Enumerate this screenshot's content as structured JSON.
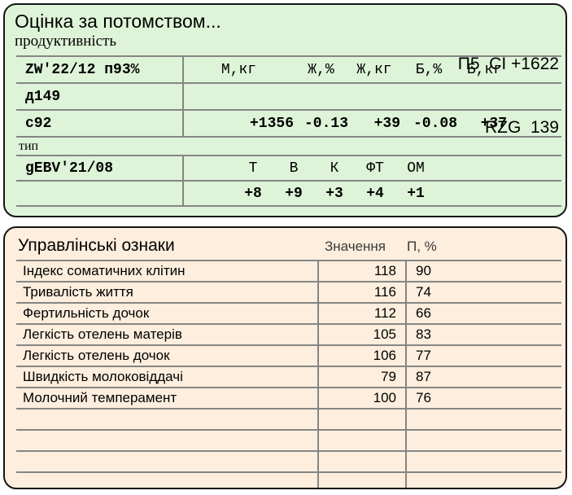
{
  "colors": {
    "panel_green_bg": "#def4d8",
    "panel_orange_bg": "#fdeedd",
    "panel_border": "#151515",
    "grid_line": "#858585",
    "secondary_text": "#3a3a3a"
  },
  "evaluation_panel": {
    "title": "Оцінка за потомством...",
    "badge_line1": "П5  CI +1622",
    "badge_line2": "RZG  139",
    "section1_label": "продуктивність",
    "production_table": {
      "row1_label": "ZW'22/12 п93%",
      "column_headers": [
        "М,кг",
        "Ж,%",
        "Ж,кг",
        "Б,%",
        "Б,кг"
      ],
      "row2_label": "д149",
      "row3_label": "с92",
      "values": [
        "+1356",
        "-0.13",
        "+39",
        "-0.08",
        "+37"
      ]
    },
    "section2_label": "тип",
    "type_table": {
      "row_label": "gEBV'21/08",
      "column_headers": [
        "Т",
        "В",
        "К",
        "ФТ",
        "ОМ"
      ],
      "values": [
        "+8",
        "+9",
        "+3",
        "+4",
        "+1"
      ]
    }
  },
  "management_panel": {
    "title": "Управлінські ознаки",
    "value_column_header": "Значення",
    "reliability_column_header": "П, %",
    "rows": [
      {
        "label": "Індекс соматичних клітин",
        "value": "118",
        "p": "90"
      },
      {
        "label": "Тривалість життя",
        "value": "116",
        "p": "74"
      },
      {
        "label": "Фертильність дочок",
        "value": "112",
        "p": "66"
      },
      {
        "label": "Легкість отелень матерів",
        "value": "105",
        "p": "83"
      },
      {
        "label": "Легкість отелень дочок",
        "value": "106",
        "p": "77"
      },
      {
        "label": "Швидкість молоковіддачі",
        "value": "79",
        "p": "87"
      },
      {
        "label": "Молочний темперамент",
        "value": "100",
        "p": "76"
      }
    ],
    "empty_row_count": 4
  }
}
